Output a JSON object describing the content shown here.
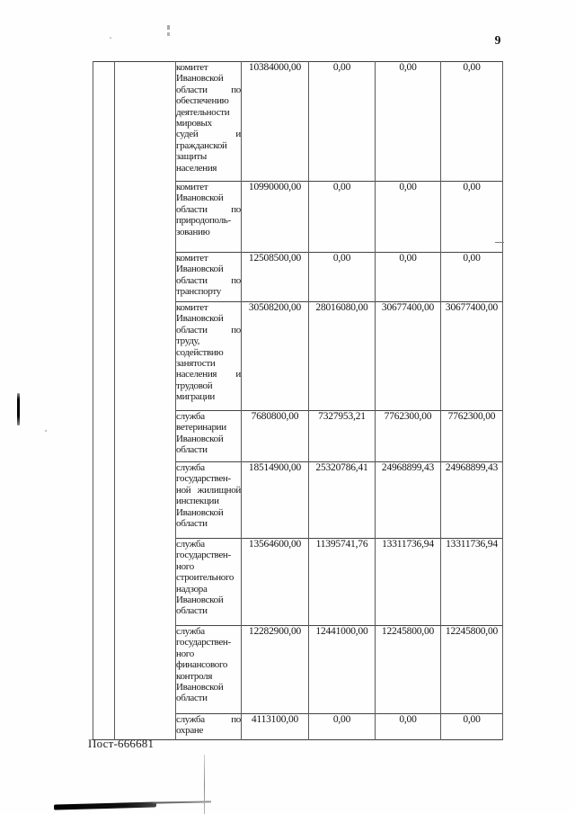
{
  "page": {
    "number": "9",
    "footer_code": "Пост-666681"
  },
  "table": {
    "rows": [
      {
        "name_lines": [
          "комитет",
          "Ивановской",
          "области по",
          "обеспечению",
          "деятельности",
          "мировых",
          "судей и",
          "гражданской",
          "защиты",
          "населения"
        ],
        "values": [
          "10384000,00",
          "0,00",
          "0,00",
          "0,00"
        ]
      },
      {
        "name_lines": [
          "комитет",
          "Ивановской",
          "области по",
          "природополь-",
          "зованию"
        ],
        "values": [
          "10990000,00",
          "0,00",
          "0,00",
          "0,00"
        ]
      },
      {
        "name_lines": [
          "комитет",
          "Ивановской",
          "области по",
          "транспорту"
        ],
        "values": [
          "12508500,00",
          "0,00",
          "0,00",
          "0,00"
        ]
      },
      {
        "name_lines": [
          "комитет",
          "Ивановской",
          "области по",
          "труду,",
          "содействию",
          "занятости",
          "населения и",
          "трудовой",
          "миграции"
        ],
        "values": [
          "30508200,00",
          "28016080,00",
          "30677400,00",
          "30677400,00"
        ]
      },
      {
        "name_lines": [
          "служба",
          "ветеринарии",
          "Ивановской",
          "области"
        ],
        "values": [
          "7680800,00",
          "7327953,21",
          "7762300,00",
          "7762300,00"
        ]
      },
      {
        "name_lines": [
          "служба",
          "государствен-",
          "ной жилищной",
          "инспекции",
          "Ивановской",
          "области"
        ],
        "values": [
          "18514900,00",
          "25320786,41",
          "24968899,43",
          "24968899,43"
        ]
      },
      {
        "name_lines": [
          "служба",
          "государствен-",
          "ного",
          "строительного",
          "надзора",
          "Ивановской",
          "области"
        ],
        "values": [
          "13564600,00",
          "11395741,76",
          "13311736,94",
          "13311736,94"
        ]
      },
      {
        "name_lines": [
          "служба",
          "государствен-",
          "ного",
          "финансового",
          "контроля",
          "Ивановской",
          "области"
        ],
        "values": [
          "12282900,00",
          "12441000,00",
          "12245800,00",
          "12245800,00"
        ]
      },
      {
        "name_lines": [
          "служба по",
          "охране"
        ],
        "values": [
          "4113100,00",
          "0,00",
          "0,00",
          "0,00"
        ]
      }
    ]
  }
}
